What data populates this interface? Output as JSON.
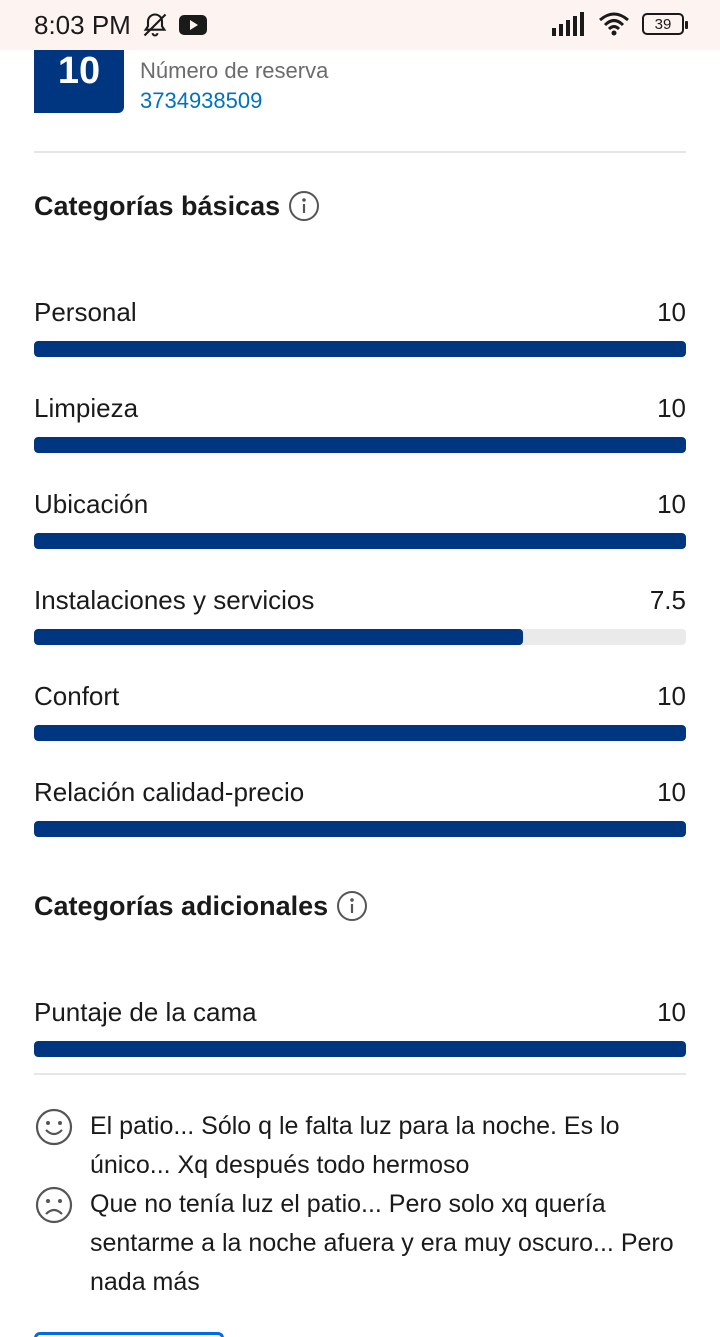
{
  "status_bar": {
    "time": "8:03 PM",
    "battery_level": "39",
    "icons": [
      "bell-off-icon",
      "youtube-icon",
      "signal-icon",
      "wifi-icon",
      "battery-icon"
    ]
  },
  "reservation": {
    "score": "10",
    "label": "Número de reserva",
    "number": "3734938509"
  },
  "basic_categories": {
    "title": "Categorías básicas",
    "items": [
      {
        "label": "Personal",
        "value": "10",
        "fraction": 1.0
      },
      {
        "label": "Limpieza",
        "value": "10",
        "fraction": 1.0
      },
      {
        "label": "Ubicación",
        "value": "10",
        "fraction": 1.0
      },
      {
        "label": "Instalaciones y servicios",
        "value": "7.5",
        "fraction": 0.75
      },
      {
        "label": "Confort",
        "value": "10",
        "fraction": 1.0
      },
      {
        "label": "Relación calidad-precio",
        "value": "10",
        "fraction": 1.0
      }
    ]
  },
  "additional_categories": {
    "title": "Categorías adicionales",
    "items": [
      {
        "label": "Puntaje de la cama",
        "value": "10",
        "fraction": 1.0
      }
    ]
  },
  "review": {
    "positive": "El patio... Sólo q le falta luz para la noche. Es lo único... Xq después todo hermoso",
    "negative": "Que no tenía luz el patio... Pero solo xq quería sentarme a la noche afuera y era muy oscuro... Pero nada más"
  },
  "colors": {
    "brand": "#003580",
    "link": "#0071c2",
    "track": "#eaeaea"
  }
}
